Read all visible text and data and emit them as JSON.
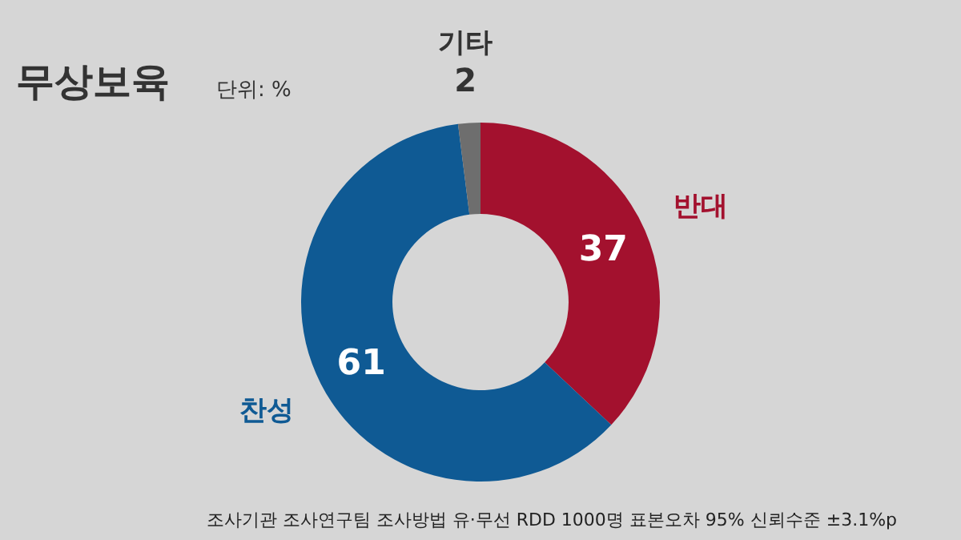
{
  "chart_data": {
    "type": "donut",
    "title": "무상보육",
    "subtitle": "단위: %",
    "categories": [
      "반대",
      "찬성",
      "기타"
    ],
    "values": [
      37,
      61,
      2
    ],
    "colors": [
      "#a3112e",
      "#0f5a94",
      "#6e6e6e"
    ],
    "data_labels": true,
    "annotations": [
      "조사기관 조사연구팀",
      "조사방법 유·무선 RDD 1000명",
      "표본오차 95% 신뢰수준 ±3.1%p"
    ]
  }
}
